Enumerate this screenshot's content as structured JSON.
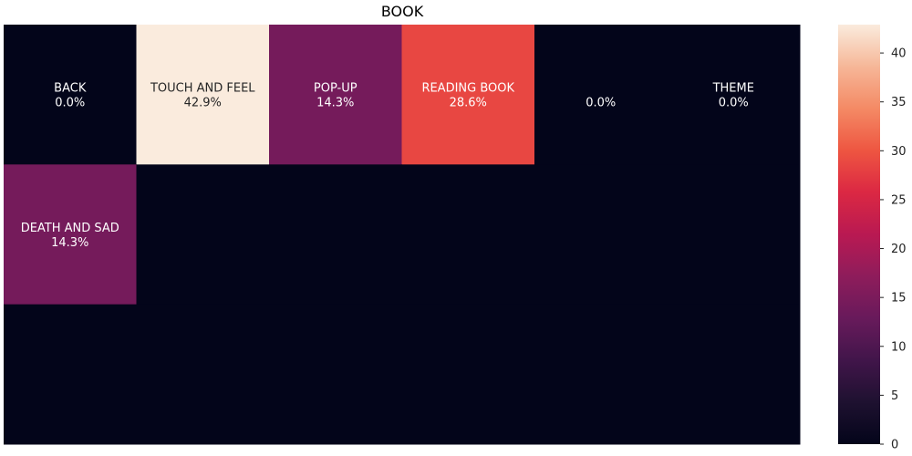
{
  "chart_data": {
    "type": "heatmap",
    "title": "BOOK",
    "grid": false,
    "rows": 3,
    "cols": 6,
    "cells": [
      {
        "row": 0,
        "col": 0,
        "label": "BACK",
        "value": 0.0,
        "text": "0.0%"
      },
      {
        "row": 0,
        "col": 1,
        "label": "TOUCH AND FEEL",
        "value": 42.9,
        "text": "42.9%"
      },
      {
        "row": 0,
        "col": 2,
        "label": "POP-UP",
        "value": 14.3,
        "text": "14.3%"
      },
      {
        "row": 0,
        "col": 3,
        "label": "READING BOOK",
        "value": 28.6,
        "text": "28.6%"
      },
      {
        "row": 0,
        "col": 4,
        "label": "",
        "value": 0.0,
        "text": "0.0%"
      },
      {
        "row": 0,
        "col": 5,
        "label": "THEME",
        "value": 0.0,
        "text": "0.0%"
      },
      {
        "row": 1,
        "col": 0,
        "label": "DEATH AND SAD",
        "value": 14.3,
        "text": "14.3%"
      },
      {
        "row": 1,
        "col": 1,
        "label": "",
        "value": 0,
        "text": ""
      },
      {
        "row": 1,
        "col": 2,
        "label": "",
        "value": 0,
        "text": ""
      },
      {
        "row": 1,
        "col": 3,
        "label": "",
        "value": 0,
        "text": ""
      },
      {
        "row": 1,
        "col": 4,
        "label": "",
        "value": 0,
        "text": ""
      },
      {
        "row": 1,
        "col": 5,
        "label": "",
        "value": 0,
        "text": ""
      },
      {
        "row": 2,
        "col": 0,
        "label": "",
        "value": 0,
        "text": ""
      },
      {
        "row": 2,
        "col": 1,
        "label": "",
        "value": 0,
        "text": ""
      },
      {
        "row": 2,
        "col": 2,
        "label": "",
        "value": 0,
        "text": ""
      },
      {
        "row": 2,
        "col": 3,
        "label": "",
        "value": 0,
        "text": ""
      },
      {
        "row": 2,
        "col": 4,
        "label": "",
        "value": 0,
        "text": ""
      },
      {
        "row": 2,
        "col": 5,
        "label": "",
        "value": 0,
        "text": ""
      }
    ],
    "colorbar": {
      "min": 0,
      "max": 42.9,
      "ticks": [
        0,
        5,
        10,
        15,
        20,
        25,
        30,
        35,
        40
      ],
      "colormap": "rocket"
    }
  }
}
